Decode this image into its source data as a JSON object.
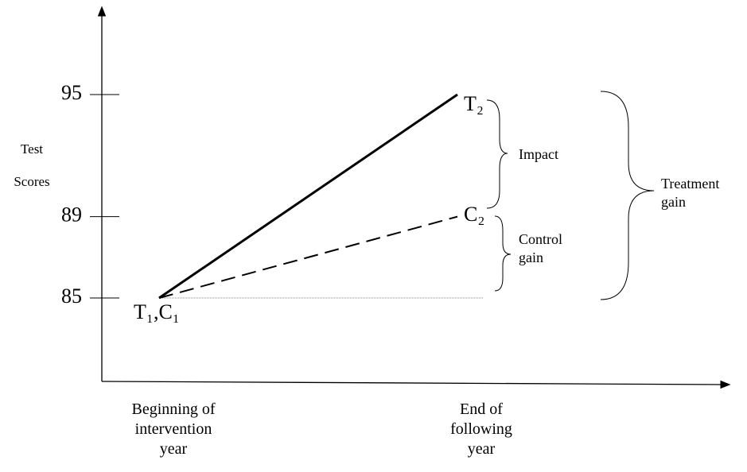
{
  "chart_data": {
    "type": "line",
    "y_label": "Test\nScores",
    "categories": [
      "Beginning of\nintervention\nyear",
      "End of\nfollowing\nyear"
    ],
    "series": [
      {
        "name": "Treatment",
        "color": "#000000",
        "line_style": "solid",
        "values": [
          85,
          95
        ]
      },
      {
        "name": "Control",
        "color": "#000000",
        "line_style": "dashed",
        "values": [
          85,
          89
        ]
      }
    ],
    "ylim": [
      80.9,
      99.1
    ],
    "yticks": [
      85,
      89,
      95
    ],
    "point_labels": [
      "T₁,C₁",
      "T₂",
      "C₂"
    ],
    "annotations": [
      "Impact",
      "Control\ngain",
      "Treatment\ngain"
    ]
  }
}
